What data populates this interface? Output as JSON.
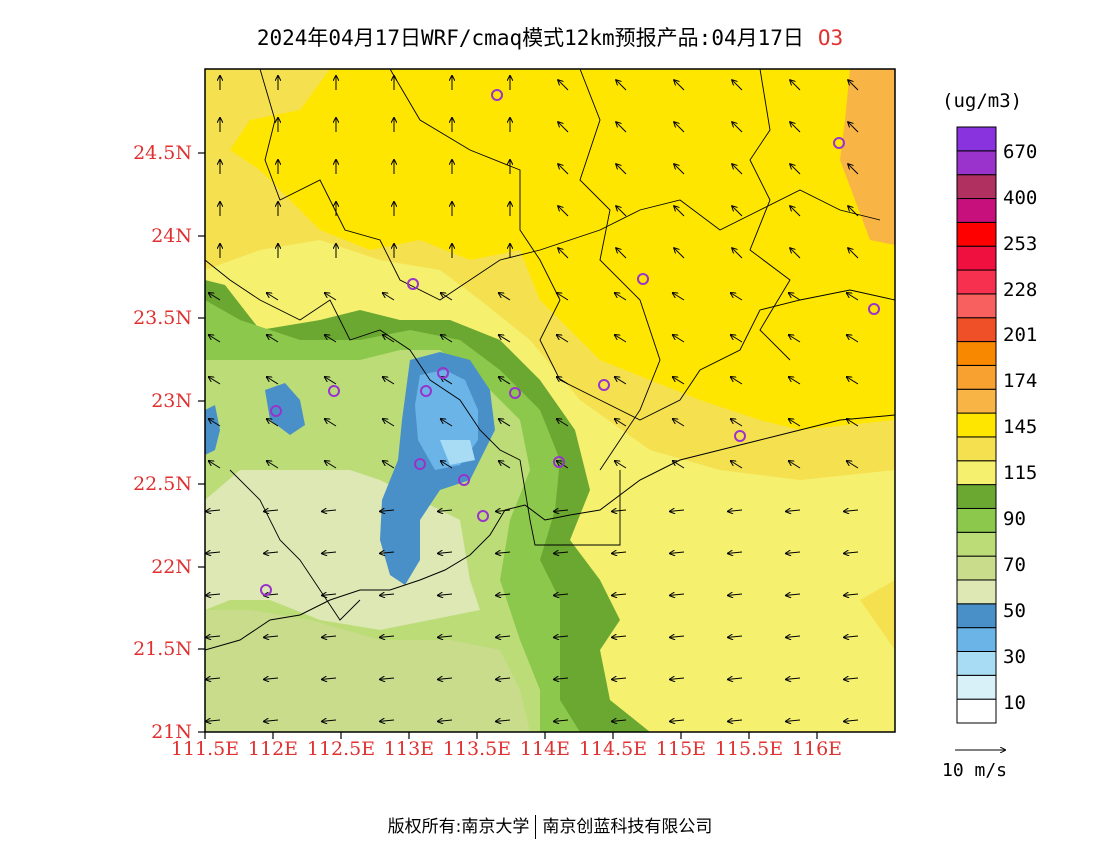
{
  "title": {
    "main": "2024年04月17日WRF/cmaq模式12km预报产品:04月17日",
    "species": "O3"
  },
  "map": {
    "lat_labels": [
      "24.5N",
      "24N",
      "23.5N",
      "23N",
      "22.5N",
      "22N",
      "21.5N",
      "21N"
    ],
    "lon_labels": [
      "111.5E",
      "112E",
      "112.5E",
      "113E",
      "113.5E",
      "114E",
      "114.5E",
      "115E",
      "115.5E",
      "116E"
    ],
    "lat_range": [
      21,
      25
    ],
    "lon_range": [
      111.5,
      116.6
    ],
    "field_colors": {
      "yellow_145": "#ffe600",
      "yellow_light_115": "#f5f06e",
      "orange_174": "#f8b545",
      "green_dark_90": "#6ba832",
      "green_mid_80": "#8cc84b",
      "green_70": "#bcdc78",
      "green_pale_60": "#c8dc8c",
      "cream_50": "#dde8b4",
      "blue_40": "#4a90c8",
      "blue_30": "#6ab4e8",
      "blue_light_20": "#a8dcf4"
    },
    "stations_color": "#9933cc"
  },
  "legend": {
    "unit": "(ug/m3)",
    "colors": [
      "#ffffff",
      "#d8f0f8",
      "#a8dcf4",
      "#6ab4e8",
      "#4a90c8",
      "#dde8b4",
      "#c8dc8c",
      "#bcdc78",
      "#8cc84b",
      "#6ba832",
      "#f5f06e",
      "#f5e050",
      "#ffe600",
      "#f8b545",
      "#f8a030",
      "#f88800",
      "#f05028",
      "#f86060",
      "#f83050",
      "#f01040",
      "#ff0000",
      "#c8107c",
      "#b03060",
      "#9933cc",
      "#8833dd"
    ],
    "labels": [
      "10",
      "30",
      "50",
      "70",
      "90",
      "115",
      "145",
      "174",
      "201",
      "228",
      "253",
      "400",
      "670"
    ]
  },
  "wind_reference": "10 m/s",
  "copyright": {
    "left": "版权所有:南京大学",
    "right": "南京创蓝科技有限公司"
  }
}
